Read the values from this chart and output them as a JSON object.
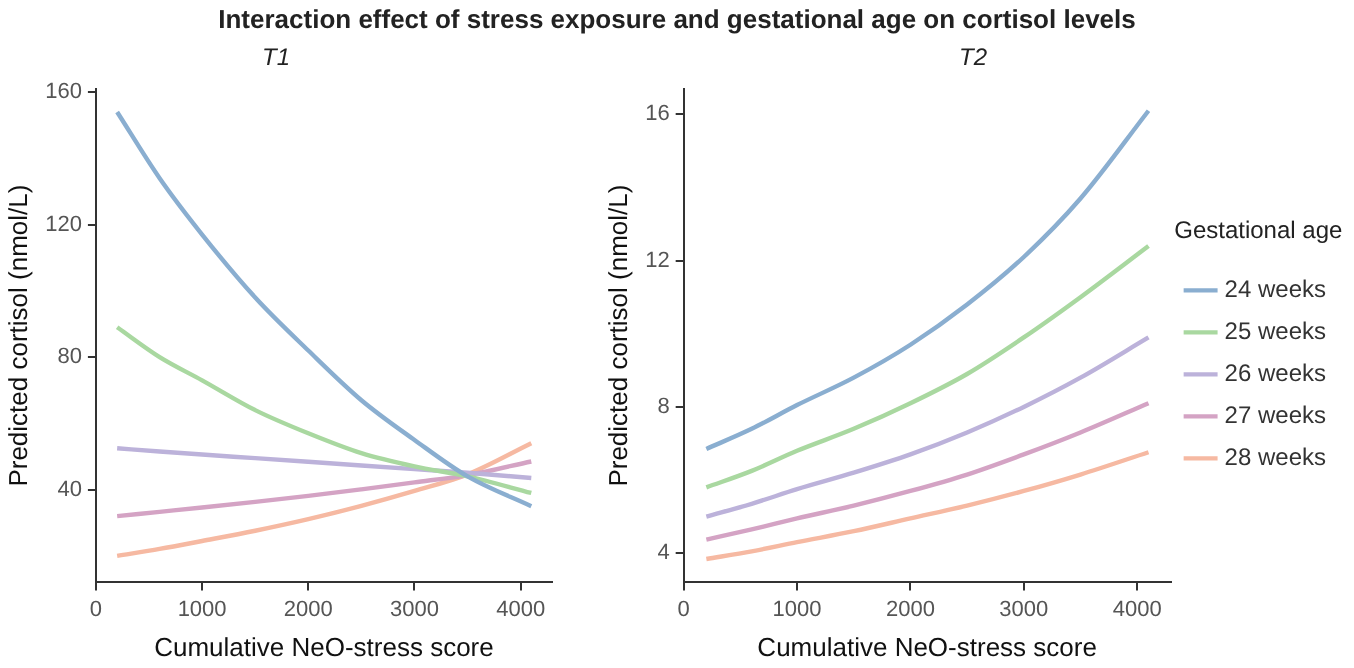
{
  "chart_data": [
    {
      "type": "line",
      "title": "Interaction effect of stress exposure and gestational age on cortisol levels",
      "subtitle": "T1",
      "xlabel": "Cumulative NeO-stress score",
      "ylabel": "Predicted cortisol (nmol/L)",
      "xlim": [
        0,
        4295
      ],
      "xticks": [
        0,
        1000,
        2000,
        3000,
        4000
      ],
      "ylim": [
        12,
        161
      ],
      "yticks": [
        40,
        80,
        120,
        160
      ],
      "grid": false,
      "legend": false,
      "marker": "none",
      "line_style": "solid",
      "x": [
        200,
        600,
        1000,
        1500,
        2000,
        2500,
        3000,
        3500,
        4100
      ],
      "series": [
        {
          "color": "#8aaed0",
          "values": [
            154,
            134,
            117,
            98,
            82,
            67,
            55,
            44,
            35
          ]
        },
        {
          "color": "#a9d8a0",
          "values": [
            89,
            80,
            73,
            64,
            57,
            51,
            47,
            44,
            39
          ]
        },
        {
          "color": "#bcb2da",
          "values": [
            52.5,
            51.5,
            50.6,
            49.5,
            48.4,
            47.3,
            46.2,
            45.1,
            43.5
          ]
        },
        {
          "color": "#d4a3c4",
          "values": [
            32,
            33.3,
            34.6,
            36.3,
            38.1,
            40.1,
            42.2,
            44.4,
            48.5
          ]
        },
        {
          "color": "#f6b9a2",
          "values": [
            20,
            22.1,
            24.5,
            27.6,
            31.1,
            35.1,
            39.6,
            44.6,
            54
          ]
        }
      ]
    },
    {
      "type": "line",
      "subtitle": "T2",
      "xlabel": "Cumulative NeO-stress score",
      "ylabel": "Predicted cortisol (nmol/L)",
      "legend_title": "Gestational age",
      "xlim": [
        0,
        4295
      ],
      "xticks": [
        0,
        1000,
        2000,
        3000,
        4000
      ],
      "ylim": [
        3.2,
        16.7
      ],
      "yticks": [
        4,
        8,
        12,
        16
      ],
      "grid": false,
      "legend": "right",
      "marker": "none",
      "line_style": "solid",
      "x": [
        200,
        600,
        1000,
        1500,
        2000,
        2500,
        3000,
        3500,
        4100
      ],
      "series": [
        {
          "name": "24 weeks",
          "color": "#8aaed0",
          "values": [
            6.85,
            7.4,
            8.05,
            8.8,
            9.7,
            10.8,
            12.1,
            13.7,
            16.1
          ]
        },
        {
          "name": "25 weeks",
          "color": "#a9d8a0",
          "values": [
            5.8,
            6.25,
            6.8,
            7.4,
            8.1,
            8.9,
            9.9,
            11.0,
            12.4
          ]
        },
        {
          "name": "26 weeks",
          "color": "#bcb2da",
          "values": [
            5.0,
            5.35,
            5.75,
            6.2,
            6.7,
            7.3,
            8.0,
            8.8,
            9.9
          ]
        },
        {
          "name": "27 weeks",
          "color": "#d4a3c4",
          "values": [
            4.37,
            4.65,
            4.95,
            5.3,
            5.7,
            6.15,
            6.7,
            7.3,
            8.1
          ]
        },
        {
          "name": "28 weeks",
          "color": "#f6b9a2",
          "values": [
            3.84,
            4.05,
            4.3,
            4.6,
            4.95,
            5.3,
            5.7,
            6.15,
            6.76
          ]
        }
      ]
    }
  ]
}
